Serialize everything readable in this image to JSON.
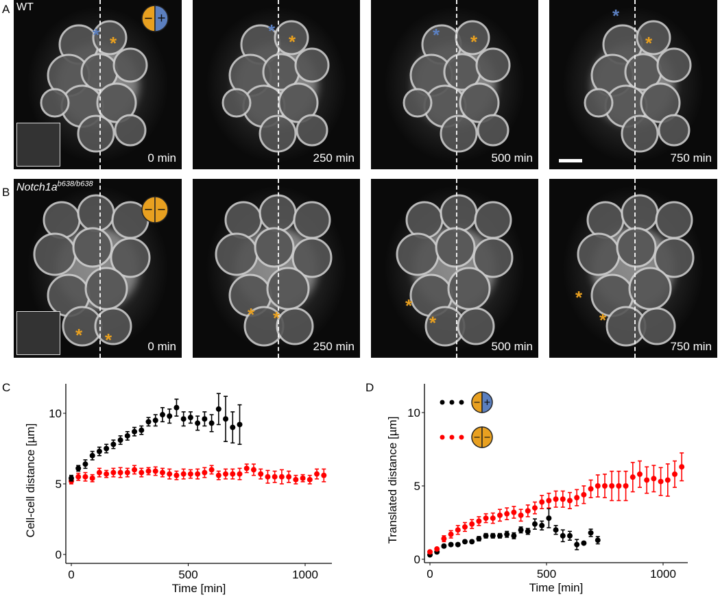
{
  "panels": {
    "A": {
      "label": "A",
      "genotype": "WT",
      "times": [
        "0 min",
        "250 min",
        "500 min",
        "750 min"
      ]
    },
    "B": {
      "label": "B",
      "genotype": "Notch1a",
      "genotype_sup": "b638/b638",
      "times": [
        "0 min",
        "250 min",
        "500 min",
        "750 min"
      ]
    },
    "asterisk": "*",
    "icon_minus": "−",
    "icon_plus": "+"
  },
  "colors": {
    "orange": "#e8a020",
    "blue": "#5b7fbf",
    "red": "#ff0000",
    "black": "#000000"
  },
  "chart_data": [
    {
      "panel": "C",
      "type": "scatter",
      "xlabel": "Time [min]",
      "ylabel": "Cell-cell distance [µm]",
      "xlim": [
        -20,
        1120
      ],
      "ylim": [
        -0.6,
        12.4
      ],
      "xticks": [
        "0",
        "500",
        "1000"
      ],
      "yticks": [
        "0",
        "5",
        "10"
      ],
      "series": [
        {
          "name": "WT (−/+)",
          "color": "#000000",
          "x_start": 0,
          "x_step": 30,
          "y": [
            5.4,
            6.1,
            6.4,
            7.0,
            7.3,
            7.5,
            7.8,
            8.1,
            8.4,
            8.7,
            8.8,
            9.4,
            9.5,
            9.9,
            9.8,
            10.4,
            9.6,
            9.7,
            9.3,
            9.6,
            9.3,
            10.3,
            9.6,
            9.0,
            9.2
          ],
          "err": [
            0.2,
            0.2,
            0.3,
            0.3,
            0.3,
            0.3,
            0.3,
            0.3,
            0.3,
            0.3,
            0.3,
            0.3,
            0.4,
            0.5,
            0.5,
            0.6,
            0.5,
            0.4,
            0.5,
            0.5,
            0.6,
            1.1,
            1.6,
            1.1,
            1.4
          ]
        },
        {
          "name": "Notch1a (−/−)",
          "color": "#ff0000",
          "x_start": 0,
          "x_step": 30,
          "y": [
            5.2,
            5.5,
            5.5,
            5.4,
            5.8,
            5.7,
            5.8,
            5.8,
            5.8,
            6.0,
            5.8,
            5.9,
            5.9,
            5.8,
            5.7,
            5.6,
            5.7,
            5.7,
            5.7,
            5.8,
            6.0,
            5.6,
            5.7,
            5.7,
            5.7,
            6.1,
            6.0,
            5.7,
            5.5,
            5.5,
            5.5,
            5.5,
            5.3,
            5.4,
            5.3,
            5.7,
            5.6
          ],
          "err": [
            0.2,
            0.25,
            0.3,
            0.25,
            0.3,
            0.25,
            0.3,
            0.35,
            0.3,
            0.3,
            0.3,
            0.25,
            0.3,
            0.3,
            0.35,
            0.3,
            0.35,
            0.3,
            0.35,
            0.35,
            0.3,
            0.3,
            0.35,
            0.35,
            0.4,
            0.3,
            0.4,
            0.35,
            0.45,
            0.4,
            0.5,
            0.4,
            0.3,
            0.25,
            0.3,
            0.35,
            0.45
          ]
        }
      ]
    },
    {
      "panel": "D",
      "type": "scatter",
      "xlabel": "Time [min]",
      "ylabel": "Translated distance [µm]",
      "xlim": [
        -20,
        1100
      ],
      "ylim": [
        -0.3,
        12.4
      ],
      "xticks": [
        "0",
        "500",
        "1000"
      ],
      "yticks": [
        "0",
        "5",
        "10"
      ],
      "legend": "top-left",
      "series": [
        {
          "name": "WT (−/+)",
          "color": "#000000",
          "x_start": 0,
          "x_step": 30,
          "y": [
            0.3,
            0.5,
            0.9,
            1.0,
            1.0,
            1.2,
            1.2,
            1.4,
            1.6,
            1.6,
            1.6,
            1.7,
            1.6,
            2.0,
            1.9,
            2.4,
            2.3,
            2.8,
            2.0,
            1.6,
            1.6,
            1.0,
            1.1,
            1.8,
            1.3
          ],
          "err": [
            0.1,
            0.1,
            0.1,
            0.1,
            0.1,
            0.1,
            0.1,
            0.15,
            0.15,
            0.15,
            0.15,
            0.2,
            0.2,
            0.2,
            0.2,
            0.35,
            0.3,
            0.65,
            0.3,
            0.4,
            0.3,
            0.35,
            0.1,
            0.25,
            0.25
          ]
        },
        {
          "name": "Notch1a (−/−)",
          "color": "#ff0000",
          "x_start": 0,
          "x_step": 30,
          "y": [
            0.5,
            0.7,
            1.4,
            1.7,
            2.0,
            2.2,
            2.4,
            2.6,
            2.8,
            2.8,
            3.0,
            3.1,
            3.2,
            3.0,
            3.3,
            3.5,
            3.9,
            4.0,
            4.1,
            4.1,
            4.0,
            4.2,
            4.4,
            4.8,
            5.0,
            5.0,
            5.0,
            5.0,
            5.0,
            5.6,
            5.8,
            5.4,
            5.5,
            5.3,
            5.4,
            5.8,
            6.3
          ],
          "err": [
            0.1,
            0.1,
            0.2,
            0.25,
            0.3,
            0.3,
            0.3,
            0.3,
            0.3,
            0.35,
            0.4,
            0.4,
            0.4,
            0.4,
            0.4,
            0.4,
            0.45,
            0.5,
            0.55,
            0.55,
            0.55,
            0.55,
            0.6,
            0.6,
            0.75,
            0.8,
            1.0,
            1.0,
            1.0,
            1.0,
            0.9,
            0.9,
            0.9,
            0.95,
            1.1,
            0.9,
            0.95
          ]
        }
      ]
    }
  ]
}
